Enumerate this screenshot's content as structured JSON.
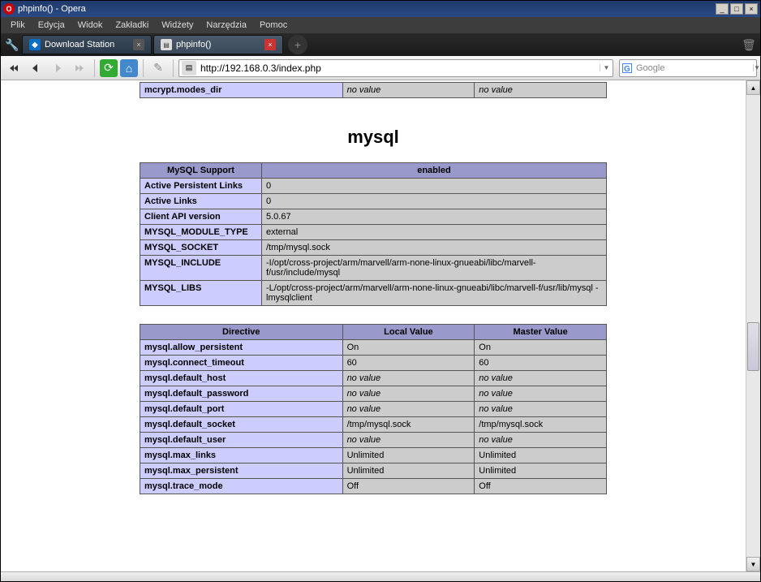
{
  "window": {
    "title": "phpinfo() - Opera"
  },
  "menu": {
    "items": [
      "Plik",
      "Edycja",
      "Widok",
      "Zakładki",
      "Widżety",
      "Narzędzia",
      "Pomoc"
    ]
  },
  "tabs": {
    "tab1_label": "Download Station",
    "tab2_label": "phpinfo()"
  },
  "nav": {
    "url": "http://192.168.0.3/index.php",
    "search_placeholder": "Google"
  },
  "section_title": "mysql",
  "top_row": {
    "key": "mcrypt.modes_dir",
    "local": "no value",
    "master": "no value"
  },
  "table1": {
    "header": {
      "left": "MySQL Support",
      "right": "enabled"
    },
    "rows": [
      {
        "key": "Active Persistent Links",
        "val": "0"
      },
      {
        "key": "Active Links",
        "val": "0"
      },
      {
        "key": "Client API version",
        "val": "5.0.67"
      },
      {
        "key": "MYSQL_MODULE_TYPE",
        "val": "external"
      },
      {
        "key": "MYSQL_SOCKET",
        "val": "/tmp/mysql.sock"
      },
      {
        "key": "MYSQL_INCLUDE",
        "val": "-I/opt/cross-project/arm/marvell/arm-none-linux-gnueabi/libc/marvell-f/usr/include/mysql"
      },
      {
        "key": "MYSQL_LIBS",
        "val": "-L/opt/cross-project/arm/marvell/arm-none-linux-gnueabi/libc/marvell-f/usr/lib/mysql -lmysqlclient"
      }
    ]
  },
  "table2": {
    "headers": {
      "directive": "Directive",
      "local": "Local Value",
      "master": "Master Value"
    },
    "rows": [
      {
        "dir": "mysql.allow_persistent",
        "local": "On",
        "master": "On",
        "nv": false
      },
      {
        "dir": "mysql.connect_timeout",
        "local": "60",
        "master": "60",
        "nv": false
      },
      {
        "dir": "mysql.default_host",
        "local": "no value",
        "master": "no value",
        "nv": true
      },
      {
        "dir": "mysql.default_password",
        "local": "no value",
        "master": "no value",
        "nv": true
      },
      {
        "dir": "mysql.default_port",
        "local": "no value",
        "master": "no value",
        "nv": true
      },
      {
        "dir": "mysql.default_socket",
        "local": "/tmp/mysql.sock",
        "master": "/tmp/mysql.sock",
        "nv": false
      },
      {
        "dir": "mysql.default_user",
        "local": "no value",
        "master": "no value",
        "nv": true
      },
      {
        "dir": "mysql.max_links",
        "local": "Unlimited",
        "master": "Unlimited",
        "nv": false
      },
      {
        "dir": "mysql.max_persistent",
        "local": "Unlimited",
        "master": "Unlimited",
        "nv": false
      },
      {
        "dir": "mysql.trace_mode",
        "local": "Off",
        "master": "Off",
        "nv": false
      }
    ]
  }
}
